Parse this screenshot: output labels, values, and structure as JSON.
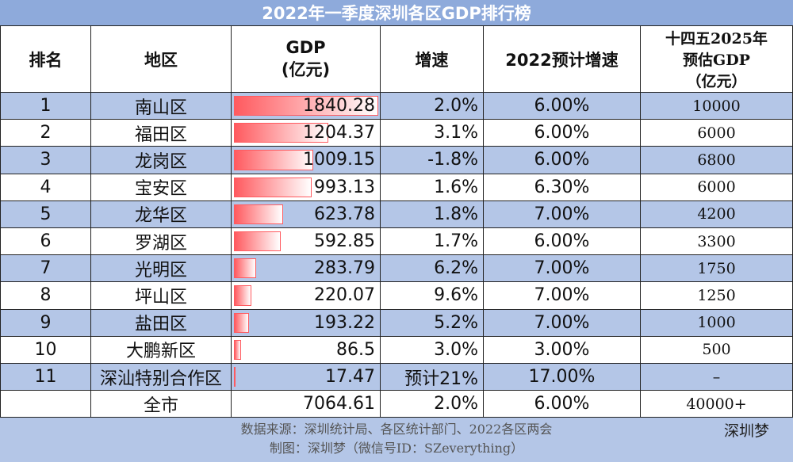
{
  "title": "2022年一季度深圳各区GDP排行榜",
  "table": {
    "header": [
      "排名",
      "地区",
      "GDP\n(亿元)",
      "增速",
      "2022预计增速",
      "十四五2025年\n预估GDP\n（亿元）"
    ],
    "rows": [
      [
        1,
        "南山区",
        1840.28,
        "2.0%",
        "6.00%",
        10000
      ],
      [
        2,
        "福田区",
        1204.37,
        "3.1%",
        "6.00%",
        6000
      ],
      [
        3,
        "龙岗区",
        1009.15,
        "-1.8%",
        "6.00%",
        6800
      ],
      [
        4,
        "宝安区",
        993.13,
        "1.6%",
        "6.30%",
        6000
      ],
      [
        5,
        "龙华区",
        623.78,
        "1.8%",
        "7.00%",
        4200
      ],
      [
        6,
        "罗湖区",
        592.85,
        "1.7%",
        "6.00%",
        3300
      ],
      [
        7,
        "光明区",
        283.79,
        "6.2%",
        "7.00%",
        1750
      ],
      [
        8,
        "坪山区",
        220.07,
        "9.6%",
        "7.00%",
        1250
      ],
      [
        9,
        "盐田区",
        193.22,
        "5.2%",
        "7.00%",
        1000
      ],
      [
        10,
        "大鹏新区",
        86.5,
        "3.0%",
        "3.00%",
        500
      ],
      [
        11,
        "深汕特别合作区",
        17.47,
        "预计21%",
        "17.00%",
        "–"
      ]
    ],
    "total": {
      "label": "全市",
      "gdp": 7064.61,
      "growth": "2.0%",
      "forecast": "6.00%",
      "target": "40000+"
    }
  },
  "footer": {
    "source": "数据来源：深圳统计局、各区统计部门、2022各区两会",
    "credit": "制图：深圳梦（微信号ID：SZeverything）",
    "logo": "深圳梦"
  }
}
